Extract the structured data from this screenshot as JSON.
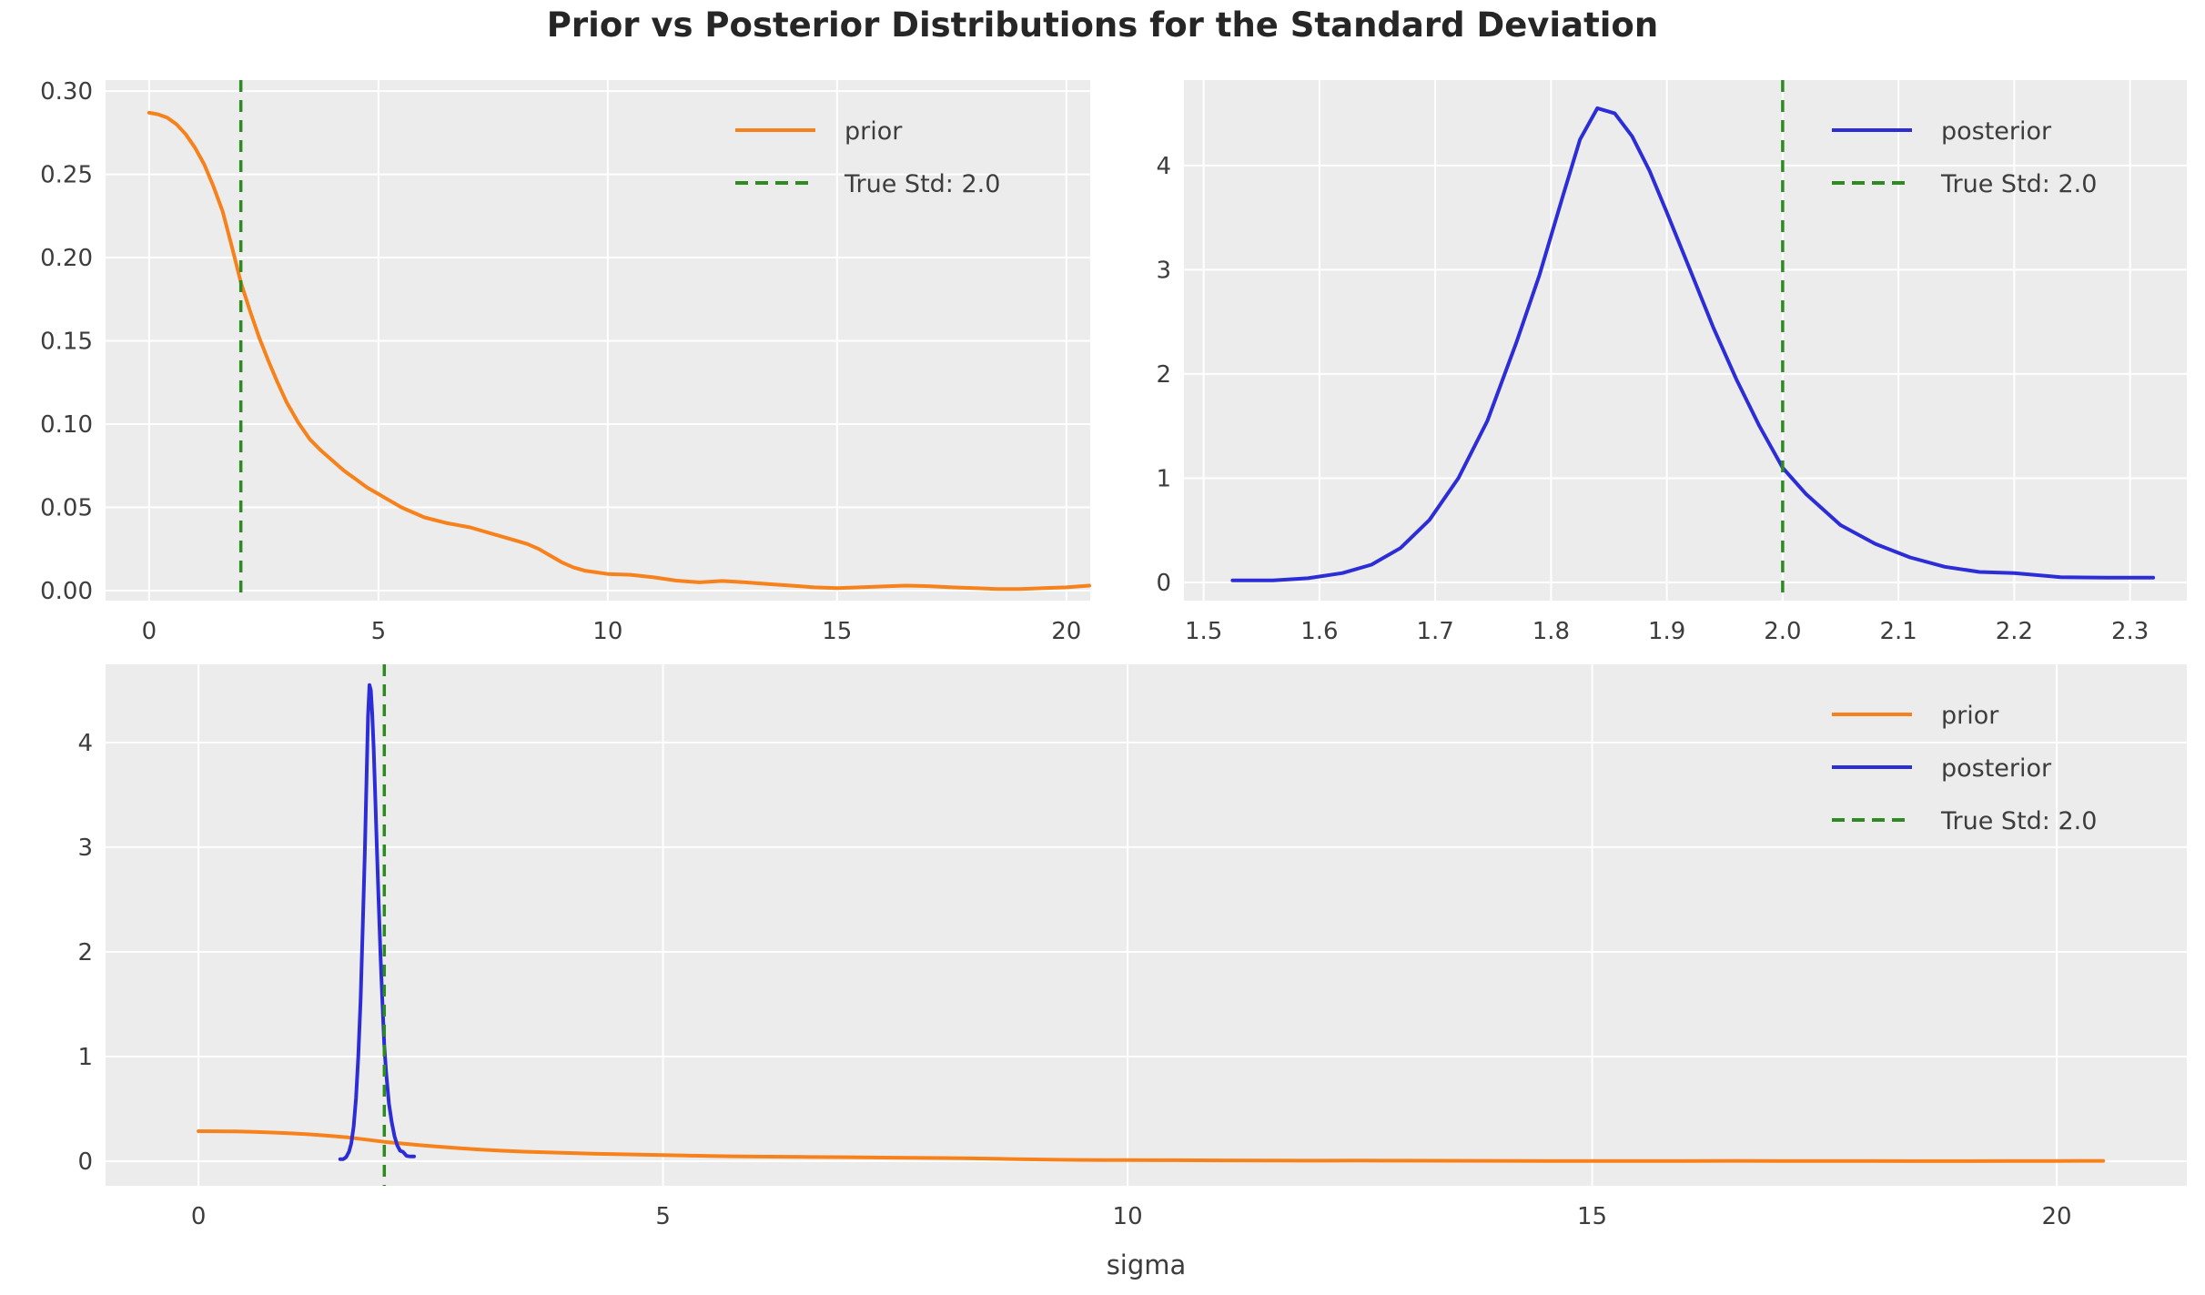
{
  "chart_data": {
    "type": "line",
    "figure_title": "Prior vs Posterior Distributions for the Standard Deviation",
    "true_std": 2.0,
    "colors": {
      "prior": "#f7811a",
      "posterior": "#2d2dd8",
      "true_std_line": "#2e8b22",
      "plot_background": "#ececec",
      "grid": "#ffffff",
      "tick_text": "#3d3d3d",
      "title_text": "#262626"
    },
    "curves": {
      "prior": {
        "label": "prior",
        "color": "#f7811a",
        "x": [
          0,
          0.2,
          0.4,
          0.6,
          0.8,
          1.0,
          1.2,
          1.4,
          1.6,
          1.8,
          2.0,
          2.2,
          2.4,
          2.6,
          2.8,
          3.0,
          3.25,
          3.5,
          3.75,
          4.0,
          4.25,
          4.5,
          4.75,
          5.0,
          5.25,
          5.5,
          5.75,
          6.0,
          6.5,
          7.0,
          7.5,
          8.0,
          8.25,
          8.5,
          8.75,
          9.0,
          9.25,
          9.5,
          9.75,
          10.0,
          10.5,
          11.0,
          11.5,
          12.0,
          12.5,
          13.0,
          13.5,
          14.0,
          14.5,
          15.0,
          15.5,
          16.0,
          16.5,
          17.0,
          17.5,
          18.0,
          18.5,
          19.0,
          19.5,
          20.0,
          20.5
        ],
        "y": [
          0.287,
          0.286,
          0.284,
          0.28,
          0.274,
          0.266,
          0.256,
          0.243,
          0.228,
          0.207,
          0.185,
          0.168,
          0.152,
          0.138,
          0.125,
          0.113,
          0.101,
          0.091,
          0.084,
          0.078,
          0.072,
          0.067,
          0.062,
          0.058,
          0.054,
          0.05,
          0.047,
          0.044,
          0.0405,
          0.038,
          0.034,
          0.03,
          0.028,
          0.025,
          0.021,
          0.017,
          0.014,
          0.012,
          0.011,
          0.01,
          0.0095,
          0.008,
          0.006,
          0.005,
          0.0058,
          0.005,
          0.004,
          0.003,
          0.002,
          0.0015,
          0.002,
          0.0025,
          0.003,
          0.0027,
          0.002,
          0.0015,
          0.001,
          0.001,
          0.0015,
          0.002,
          0.003
        ]
      },
      "posterior": {
        "label": "posterior",
        "color": "#2d2dd8",
        "x": [
          1.525,
          1.56,
          1.59,
          1.62,
          1.645,
          1.67,
          1.695,
          1.72,
          1.745,
          1.77,
          1.79,
          1.81,
          1.825,
          1.84,
          1.855,
          1.87,
          1.885,
          1.9,
          1.92,
          1.94,
          1.96,
          1.98,
          2.0,
          2.02,
          2.05,
          2.08,
          2.11,
          2.14,
          2.17,
          2.2,
          2.24,
          2.28,
          2.32
        ],
        "y": [
          0.02,
          0.02,
          0.04,
          0.09,
          0.17,
          0.33,
          0.6,
          1.0,
          1.55,
          2.3,
          2.95,
          3.7,
          4.25,
          4.55,
          4.5,
          4.28,
          3.95,
          3.55,
          3.0,
          2.45,
          1.95,
          1.5,
          1.1,
          0.85,
          0.55,
          0.37,
          0.24,
          0.15,
          0.1,
          0.09,
          0.05,
          0.045,
          0.045
        ]
      }
    },
    "vline": {
      "label": "True Std: 2.0",
      "x": 2.0,
      "color": "#2e8b22",
      "style": "dashed"
    },
    "panels": [
      {
        "name": "prior-panel",
        "xlim": [
          -0.95,
          20.52
        ],
        "ylim": [
          -0.006,
          0.3066
        ],
        "xticks": [
          {
            "v": 0,
            "l": "0"
          },
          {
            "v": 5,
            "l": "5"
          },
          {
            "v": 10,
            "l": "10"
          },
          {
            "v": 15,
            "l": "15"
          },
          {
            "v": 20,
            "l": "20"
          }
        ],
        "yticks": [
          {
            "v": 0.0,
            "l": "0.00"
          },
          {
            "v": 0.05,
            "l": "0.05"
          },
          {
            "v": 0.1,
            "l": "0.10"
          },
          {
            "v": 0.15,
            "l": "0.15"
          },
          {
            "v": 0.2,
            "l": "0.20"
          },
          {
            "v": 0.25,
            "l": "0.25"
          },
          {
            "v": 0.3,
            "l": "0.30"
          }
        ],
        "series": [
          "prior"
        ],
        "show_vline": true,
        "legend": [
          "prior",
          "vline"
        ],
        "xlabel": ""
      },
      {
        "name": "posterior-panel",
        "xlim": [
          1.483,
          2.349
        ],
        "ylim": [
          -0.175,
          4.82
        ],
        "xticks": [
          {
            "v": 1.5,
            "l": "1.5"
          },
          {
            "v": 1.6,
            "l": "1.6"
          },
          {
            "v": 1.7,
            "l": "1.7"
          },
          {
            "v": 1.8,
            "l": "1.8"
          },
          {
            "v": 1.9,
            "l": "1.9"
          },
          {
            "v": 2.0,
            "l": "2.0"
          },
          {
            "v": 2.1,
            "l": "2.1"
          },
          {
            "v": 2.2,
            "l": "2.2"
          },
          {
            "v": 2.3,
            "l": "2.3"
          }
        ],
        "yticks": [
          {
            "v": 0,
            "l": "0"
          },
          {
            "v": 1,
            "l": "1"
          },
          {
            "v": 2,
            "l": "2"
          },
          {
            "v": 3,
            "l": "3"
          },
          {
            "v": 4,
            "l": "4"
          }
        ],
        "series": [
          "posterior"
        ],
        "show_vline": true,
        "legend": [
          "posterior",
          "vline"
        ],
        "xlabel": ""
      },
      {
        "name": "combined-panel",
        "xlim": [
          -1.0,
          21.4
        ],
        "ylim": [
          -0.235,
          4.747
        ],
        "xticks": [
          {
            "v": 0,
            "l": "0"
          },
          {
            "v": 5,
            "l": "5"
          },
          {
            "v": 10,
            "l": "10"
          },
          {
            "v": 15,
            "l": "15"
          },
          {
            "v": 20,
            "l": "20"
          }
        ],
        "yticks": [
          {
            "v": 0,
            "l": "0"
          },
          {
            "v": 1,
            "l": "1"
          },
          {
            "v": 2,
            "l": "2"
          },
          {
            "v": 3,
            "l": "3"
          },
          {
            "v": 4,
            "l": "4"
          }
        ],
        "series": [
          "prior",
          "posterior"
        ],
        "show_vline": true,
        "legend": [
          "prior",
          "posterior",
          "vline"
        ],
        "xlabel": "sigma"
      }
    ]
  }
}
